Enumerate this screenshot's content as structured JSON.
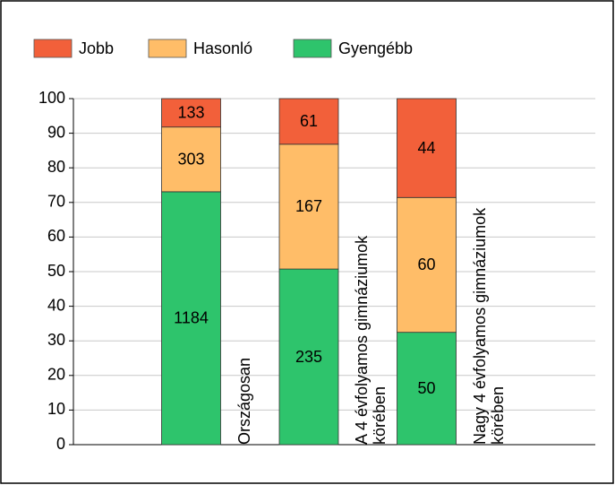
{
  "chart_data": {
    "type": "bar",
    "stacking": "percent",
    "categories": [
      "Országosan",
      "A 4 évfolyamos gimnáziumok körében",
      "Nagy 4 évfolyamos gimnáziumok körében"
    ],
    "series": [
      {
        "name": "Jobb",
        "color": "#f2603a",
        "values": [
          133,
          61,
          44
        ]
      },
      {
        "name": "Hasonló",
        "color": "#ffbd68",
        "values": [
          303,
          167,
          60
        ]
      },
      {
        "name": "Gyengébb",
        "color": "#2ec46c",
        "values": [
          1184,
          235,
          50
        ]
      }
    ],
    "ylim": [
      0,
      100
    ],
    "yticks": [
      0,
      10,
      20,
      30,
      40,
      50,
      60,
      70,
      80,
      90,
      100
    ],
    "grid": true,
    "legend": "top"
  }
}
